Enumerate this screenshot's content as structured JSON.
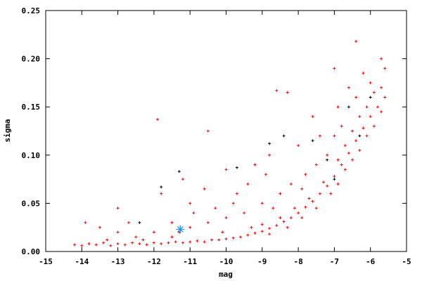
{
  "chart_data": {
    "type": "scatter",
    "title": "",
    "xlabel": "mag",
    "ylabel": "sigma",
    "xlim": [
      -15,
      -5
    ],
    "ylim": [
      0,
      0.25
    ],
    "xticks": [
      -15,
      -14,
      -13,
      -12,
      -11,
      -10,
      -9,
      -8,
      -7,
      -6,
      -5
    ],
    "yticks": [
      0.0,
      0.05,
      0.1,
      0.15,
      0.2,
      0.25
    ],
    "ytick_labels": [
      "0.00",
      "0.05",
      "0.10",
      "0.15",
      "0.20",
      "0.25"
    ],
    "xtick_labels": [
      "-15",
      "-14",
      "-13",
      "-12",
      "-11",
      "-10",
      "-9",
      "-8",
      "-7",
      "-6",
      "-5"
    ],
    "grid": false,
    "legend": "none",
    "series": [
      {
        "color": "#ff0000",
        "marker": "plus",
        "points": [
          [
            -14.2,
            0.007
          ],
          [
            -14.0,
            0.006
          ],
          [
            -13.8,
            0.008
          ],
          [
            -13.6,
            0.007
          ],
          [
            -13.4,
            0.009
          ],
          [
            -13.2,
            0.006
          ],
          [
            -13.0,
            0.008
          ],
          [
            -12.8,
            0.007
          ],
          [
            -12.6,
            0.009
          ],
          [
            -12.4,
            0.008
          ],
          [
            -12.2,
            0.007
          ],
          [
            -12.0,
            0.009
          ],
          [
            -11.8,
            0.008
          ],
          [
            -11.6,
            0.009
          ],
          [
            -11.4,
            0.01
          ],
          [
            -11.2,
            0.009
          ],
          [
            -11.0,
            0.01
          ],
          [
            -10.8,
            0.011
          ],
          [
            -10.6,
            0.01
          ],
          [
            -10.4,
            0.012
          ],
          [
            -10.2,
            0.012
          ],
          [
            -10.0,
            0.013
          ],
          [
            -9.8,
            0.014
          ],
          [
            -9.6,
            0.015
          ],
          [
            -9.4,
            0.017
          ],
          [
            -9.2,
            0.019
          ],
          [
            -9.0,
            0.021
          ],
          [
            -8.8,
            0.024
          ],
          [
            -8.6,
            0.027
          ],
          [
            -8.4,
            0.031
          ],
          [
            -8.2,
            0.035
          ],
          [
            -8.0,
            0.04
          ],
          [
            -7.8,
            0.046
          ],
          [
            -7.6,
            0.052
          ],
          [
            -7.4,
            0.06
          ],
          [
            -7.2,
            0.068
          ],
          [
            -7.0,
            0.078
          ],
          [
            -6.8,
            0.09
          ],
          [
            -6.6,
            0.102
          ],
          [
            -6.4,
            0.115
          ],
          [
            -6.2,
            0.128
          ],
          [
            -6.0,
            0.14
          ],
          [
            -5.8,
            0.15
          ],
          [
            -5.6,
            0.16
          ],
          [
            -9.0,
            0.028
          ],
          [
            -8.8,
            0.018
          ],
          [
            -8.5,
            0.035
          ],
          [
            -8.3,
            0.025
          ],
          [
            -8.1,
            0.045
          ],
          [
            -7.9,
            0.035
          ],
          [
            -7.7,
            0.055
          ],
          [
            -7.5,
            0.045
          ],
          [
            -7.3,
            0.072
          ],
          [
            -7.1,
            0.06
          ],
          [
            -6.9,
            0.095
          ],
          [
            -6.9,
            0.07
          ],
          [
            -6.7,
            0.11
          ],
          [
            -6.7,
            0.085
          ],
          [
            -6.5,
            0.125
          ],
          [
            -6.5,
            0.095
          ],
          [
            -6.3,
            0.14
          ],
          [
            -6.3,
            0.105
          ],
          [
            -6.1,
            0.15
          ],
          [
            -6.1,
            0.12
          ],
          [
            -5.9,
            0.165
          ],
          [
            -5.9,
            0.13
          ],
          [
            -5.7,
            0.17
          ],
          [
            -5.7,
            0.145
          ],
          [
            -5.6,
            0.19
          ],
          [
            -6.0,
            0.175
          ],
          [
            -6.4,
            0.16
          ],
          [
            -6.2,
            0.185
          ],
          [
            -6.4,
            0.218
          ],
          [
            -5.7,
            0.2
          ],
          [
            -6.8,
            0.13
          ],
          [
            -7.0,
            0.12
          ],
          [
            -7.2,
            0.1
          ],
          [
            -7.5,
            0.09
          ],
          [
            -7.8,
            0.08
          ],
          [
            -8.2,
            0.07
          ],
          [
            -8.5,
            0.06
          ],
          [
            -9.0,
            0.05
          ],
          [
            -9.5,
            0.04
          ],
          [
            -10.0,
            0.035
          ],
          [
            -10.5,
            0.03
          ],
          [
            -11.0,
            0.025
          ],
          [
            -11.5,
            0.03
          ],
          [
            -12.0,
            0.02
          ],
          [
            -12.5,
            0.015
          ],
          [
            -13.0,
            0.02
          ],
          [
            -13.5,
            0.025
          ],
          [
            -13.9,
            0.03
          ],
          [
            -13.0,
            0.045
          ],
          [
            -11.8,
            0.06
          ],
          [
            -11.2,
            0.075
          ],
          [
            -10.6,
            0.065
          ],
          [
            -10.0,
            0.085
          ],
          [
            -9.4,
            0.07
          ],
          [
            -8.8,
            0.1
          ],
          [
            -8.6,
            0.167
          ],
          [
            -8.3,
            0.165
          ],
          [
            -10.5,
            0.125
          ],
          [
            -11.9,
            0.137
          ],
          [
            -9.2,
            0.09
          ],
          [
            -7.6,
            0.14
          ],
          [
            -7.0,
            0.19
          ],
          [
            -6.6,
            0.17
          ],
          [
            -9.8,
            0.05
          ],
          [
            -10.3,
            0.045
          ],
          [
            -11.5,
            0.015
          ],
          [
            -12.3,
            0.012
          ],
          [
            -13.3,
            0.012
          ],
          [
            -10.9,
            0.04
          ],
          [
            -9.7,
            0.06
          ],
          [
            -8.9,
            0.08
          ],
          [
            -8.0,
            0.11
          ],
          [
            -7.4,
            0.12
          ],
          [
            -6.9,
            0.15
          ],
          [
            -12.7,
            0.03
          ],
          [
            -11.0,
            0.05
          ],
          [
            -9.3,
            0.025
          ],
          [
            -8.7,
            0.045
          ],
          [
            -7.9,
            0.065
          ],
          [
            -10.1,
            0.02
          ],
          [
            -11.3,
            0.02
          ]
        ]
      },
      {
        "color": "#000000",
        "marker": "plus",
        "points": [
          [
            -11.3,
            0.083
          ],
          [
            -11.8,
            0.067
          ],
          [
            -12.4,
            0.03
          ],
          [
            -9.7,
            0.087
          ],
          [
            -8.8,
            0.112
          ],
          [
            -8.4,
            0.12
          ],
          [
            -7.6,
            0.115
          ],
          [
            -7.2,
            0.095
          ],
          [
            -6.6,
            0.15
          ],
          [
            -6.0,
            0.16
          ],
          [
            -6.3,
            0.12
          ],
          [
            -7.0,
            0.075
          ]
        ]
      },
      {
        "color": "#1e90ff",
        "marker": "star",
        "points": [
          [
            -11.27,
            0.023
          ]
        ]
      }
    ]
  }
}
